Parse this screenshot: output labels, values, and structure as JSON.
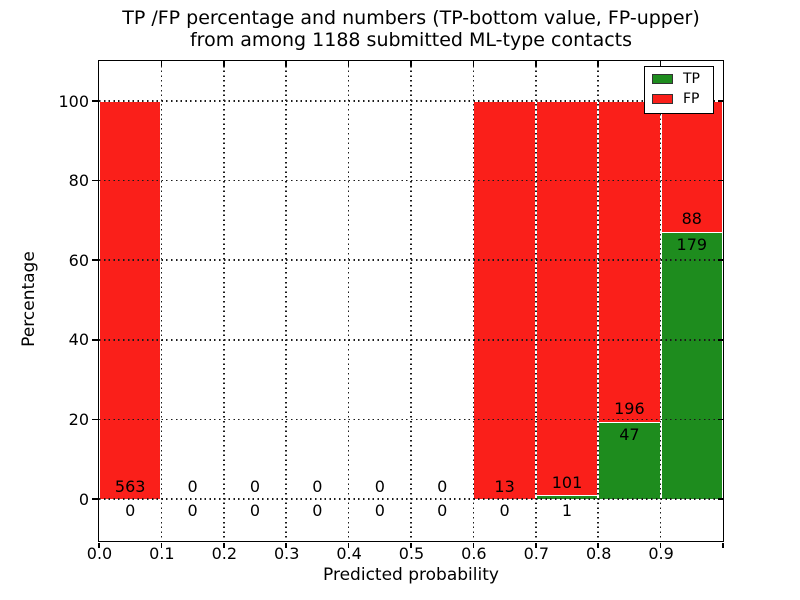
{
  "chart_data": {
    "type": "bar",
    "stacked": true,
    "title_line1": "TP /FP percentage and numbers (TP-bottom value, FP-upper)",
    "title_line2": "from among 1188 submitted ML-type contacts",
    "total_submitted": 1188,
    "xlabel": "Predicted probability",
    "ylabel": "Percentage",
    "xlim": [
      0.0,
      1.0
    ],
    "ylim": [
      -10,
      110
    ],
    "bin_width": 0.1,
    "grid": "dotted",
    "legend_position": "upper right",
    "series": [
      {
        "name": "TP",
        "color": "#1e8c1e",
        "position": "bottom"
      },
      {
        "name": "FP",
        "color": "#fa1f1a",
        "position": "top"
      }
    ],
    "xticks": [
      "0.0",
      "0.1",
      "0.2",
      "0.3",
      "0.4",
      "0.5",
      "0.6",
      "0.7",
      "0.8",
      "0.9"
    ],
    "yticks": [
      "0",
      "20",
      "40",
      "60",
      "80",
      "100"
    ],
    "bins": [
      {
        "range": [
          0.0,
          0.1
        ],
        "tp": 0,
        "fp": 563
      },
      {
        "range": [
          0.1,
          0.2
        ],
        "tp": 0,
        "fp": 0
      },
      {
        "range": [
          0.2,
          0.3
        ],
        "tp": 0,
        "fp": 0
      },
      {
        "range": [
          0.3,
          0.4
        ],
        "tp": 0,
        "fp": 0
      },
      {
        "range": [
          0.4,
          0.5
        ],
        "tp": 0,
        "fp": 0
      },
      {
        "range": [
          0.5,
          0.6
        ],
        "tp": 0,
        "fp": 0
      },
      {
        "range": [
          0.6,
          0.7
        ],
        "tp": 0,
        "fp": 13
      },
      {
        "range": [
          0.7,
          0.8
        ],
        "tp": 1,
        "fp": 101
      },
      {
        "range": [
          0.8,
          0.9
        ],
        "tp": 47,
        "fp": 196
      },
      {
        "range": [
          0.9,
          1.0
        ],
        "tp": 179,
        "fp": 88
      }
    ]
  },
  "colors": {
    "tp_green": "#1e8c1e",
    "fp_red": "#fa1f1a",
    "grid": "#1a1a1a",
    "background": "#ffffff",
    "bar_edge": "#ffffff"
  }
}
